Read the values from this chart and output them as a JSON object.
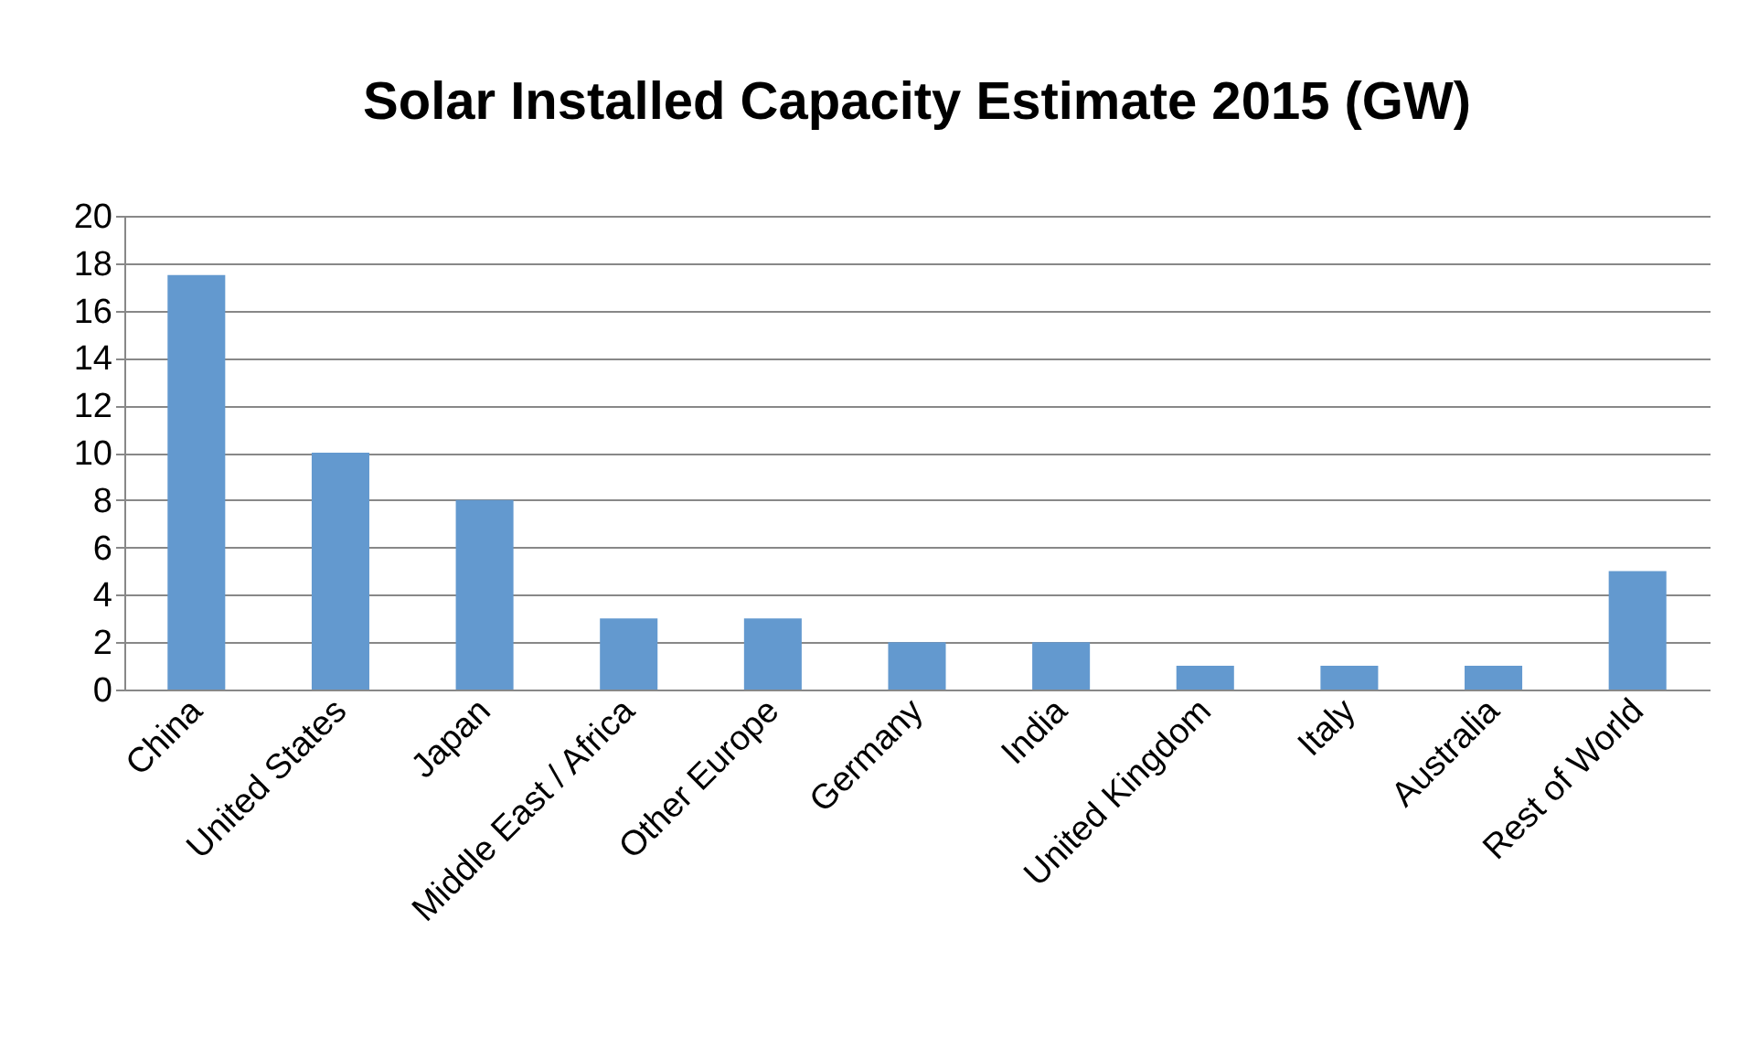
{
  "chart_data": {
    "type": "bar",
    "title": "Solar Installed Capacity Estimate 2015 (GW)",
    "categories": [
      "China",
      "United States",
      "Japan",
      "Middle East / Africa",
      "Other Europe",
      "Germany",
      "India",
      "United Kingdom",
      "Italy",
      "Australia",
      "Rest of World"
    ],
    "values": [
      17.5,
      10,
      8,
      3,
      3,
      2,
      2,
      1,
      1,
      1,
      5
    ],
    "color": "#6399cf",
    "ylim": [
      0,
      20
    ],
    "yticks": [
      0,
      2,
      4,
      6,
      8,
      10,
      12,
      14,
      16,
      18,
      20
    ],
    "grid": "y"
  }
}
